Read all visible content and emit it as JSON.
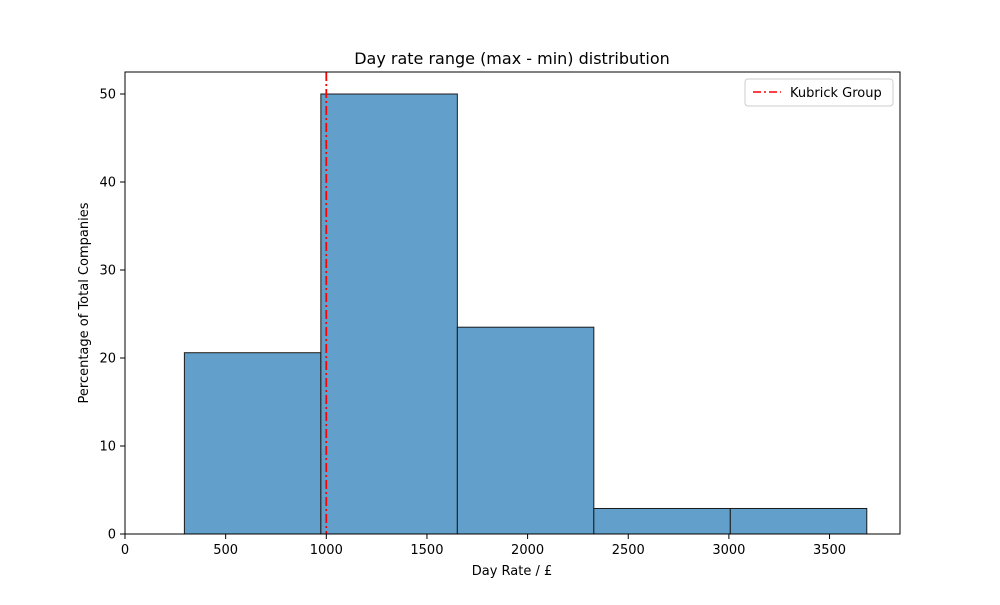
{
  "chart_data": {
    "type": "bar",
    "title": "Day rate range (max - min) distribution",
    "xlabel": "Day Rate / £",
    "ylabel": "Percentage of Total Companies",
    "xlim": [
      0,
      3850
    ],
    "ylim": [
      0,
      52.5
    ],
    "xticks": [
      0,
      500,
      1000,
      1500,
      2000,
      2500,
      3000,
      3500
    ],
    "yticks": [
      0,
      10,
      20,
      30,
      40,
      50
    ],
    "grid": false,
    "legend_position": "upper right",
    "series": [
      {
        "bins": [
          {
            "x0": 295,
            "x1": 973,
            "value": 20.6
          },
          {
            "x0": 973,
            "x1": 1651,
            "value": 50.0
          },
          {
            "x0": 1651,
            "x1": 2329,
            "value": 23.5
          },
          {
            "x0": 2329,
            "x1": 3007,
            "value": 2.9
          },
          {
            "x0": 3007,
            "x1": 3685,
            "value": 2.9
          }
        ],
        "color": "#629fca",
        "edge_color": "#1a1a1a"
      }
    ],
    "reference_lines": [
      {
        "name": "Kubrick Group",
        "x": 1000,
        "color": "#ff0000",
        "style": "dash-dot"
      }
    ]
  }
}
